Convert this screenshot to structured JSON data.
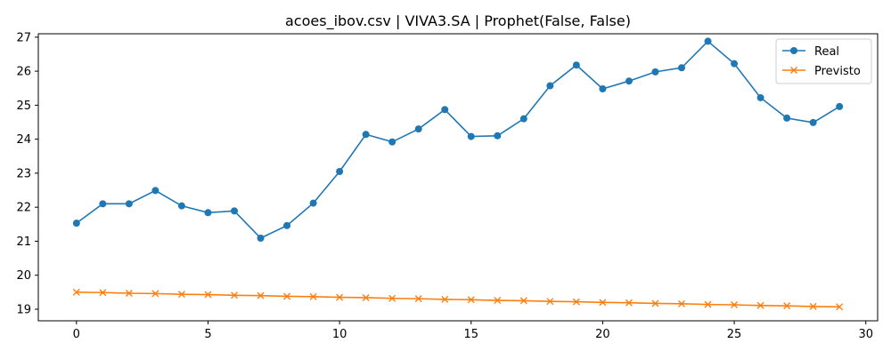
{
  "chart_data": {
    "type": "line",
    "title": "acoes_ibov.csv | VIVA3.SA | Prophet(False, False)",
    "xlabel": "",
    "ylabel": "",
    "xlim": [
      -1.45,
      30.45
    ],
    "ylim": [
      18.66,
      27.1
    ],
    "xticks": [
      0,
      5,
      10,
      15,
      20,
      25,
      30
    ],
    "yticks": [
      19,
      20,
      21,
      22,
      23,
      24,
      25,
      26,
      27
    ],
    "x": [
      0,
      1,
      2,
      3,
      4,
      5,
      6,
      7,
      8,
      9,
      10,
      11,
      12,
      13,
      14,
      15,
      16,
      17,
      18,
      19,
      20,
      21,
      22,
      23,
      24,
      25,
      26,
      27,
      28,
      29
    ],
    "series": [
      {
        "name": "Real",
        "color": "#1f77b4",
        "marker": "circle",
        "values": [
          21.53,
          22.1,
          22.1,
          22.49,
          22.04,
          21.84,
          21.89,
          21.09,
          21.46,
          22.12,
          23.05,
          24.14,
          23.92,
          24.3,
          24.87,
          24.08,
          24.1,
          24.6,
          25.57,
          26.18,
          25.48,
          25.71,
          25.98,
          26.1,
          26.88,
          26.22,
          25.22,
          24.62,
          24.49,
          24.96
        ]
      },
      {
        "name": "Previsto",
        "color": "#ff7f0e",
        "marker": "x",
        "values": [
          19.5,
          19.49,
          19.47,
          19.46,
          19.44,
          19.43,
          19.41,
          19.4,
          19.38,
          19.37,
          19.35,
          19.34,
          19.32,
          19.31,
          19.29,
          19.28,
          19.26,
          19.25,
          19.23,
          19.22,
          19.2,
          19.19,
          19.17,
          19.16,
          19.14,
          19.13,
          19.11,
          19.1,
          19.08,
          19.07
        ]
      }
    ],
    "legend_position": "top-right",
    "grid": false
  }
}
